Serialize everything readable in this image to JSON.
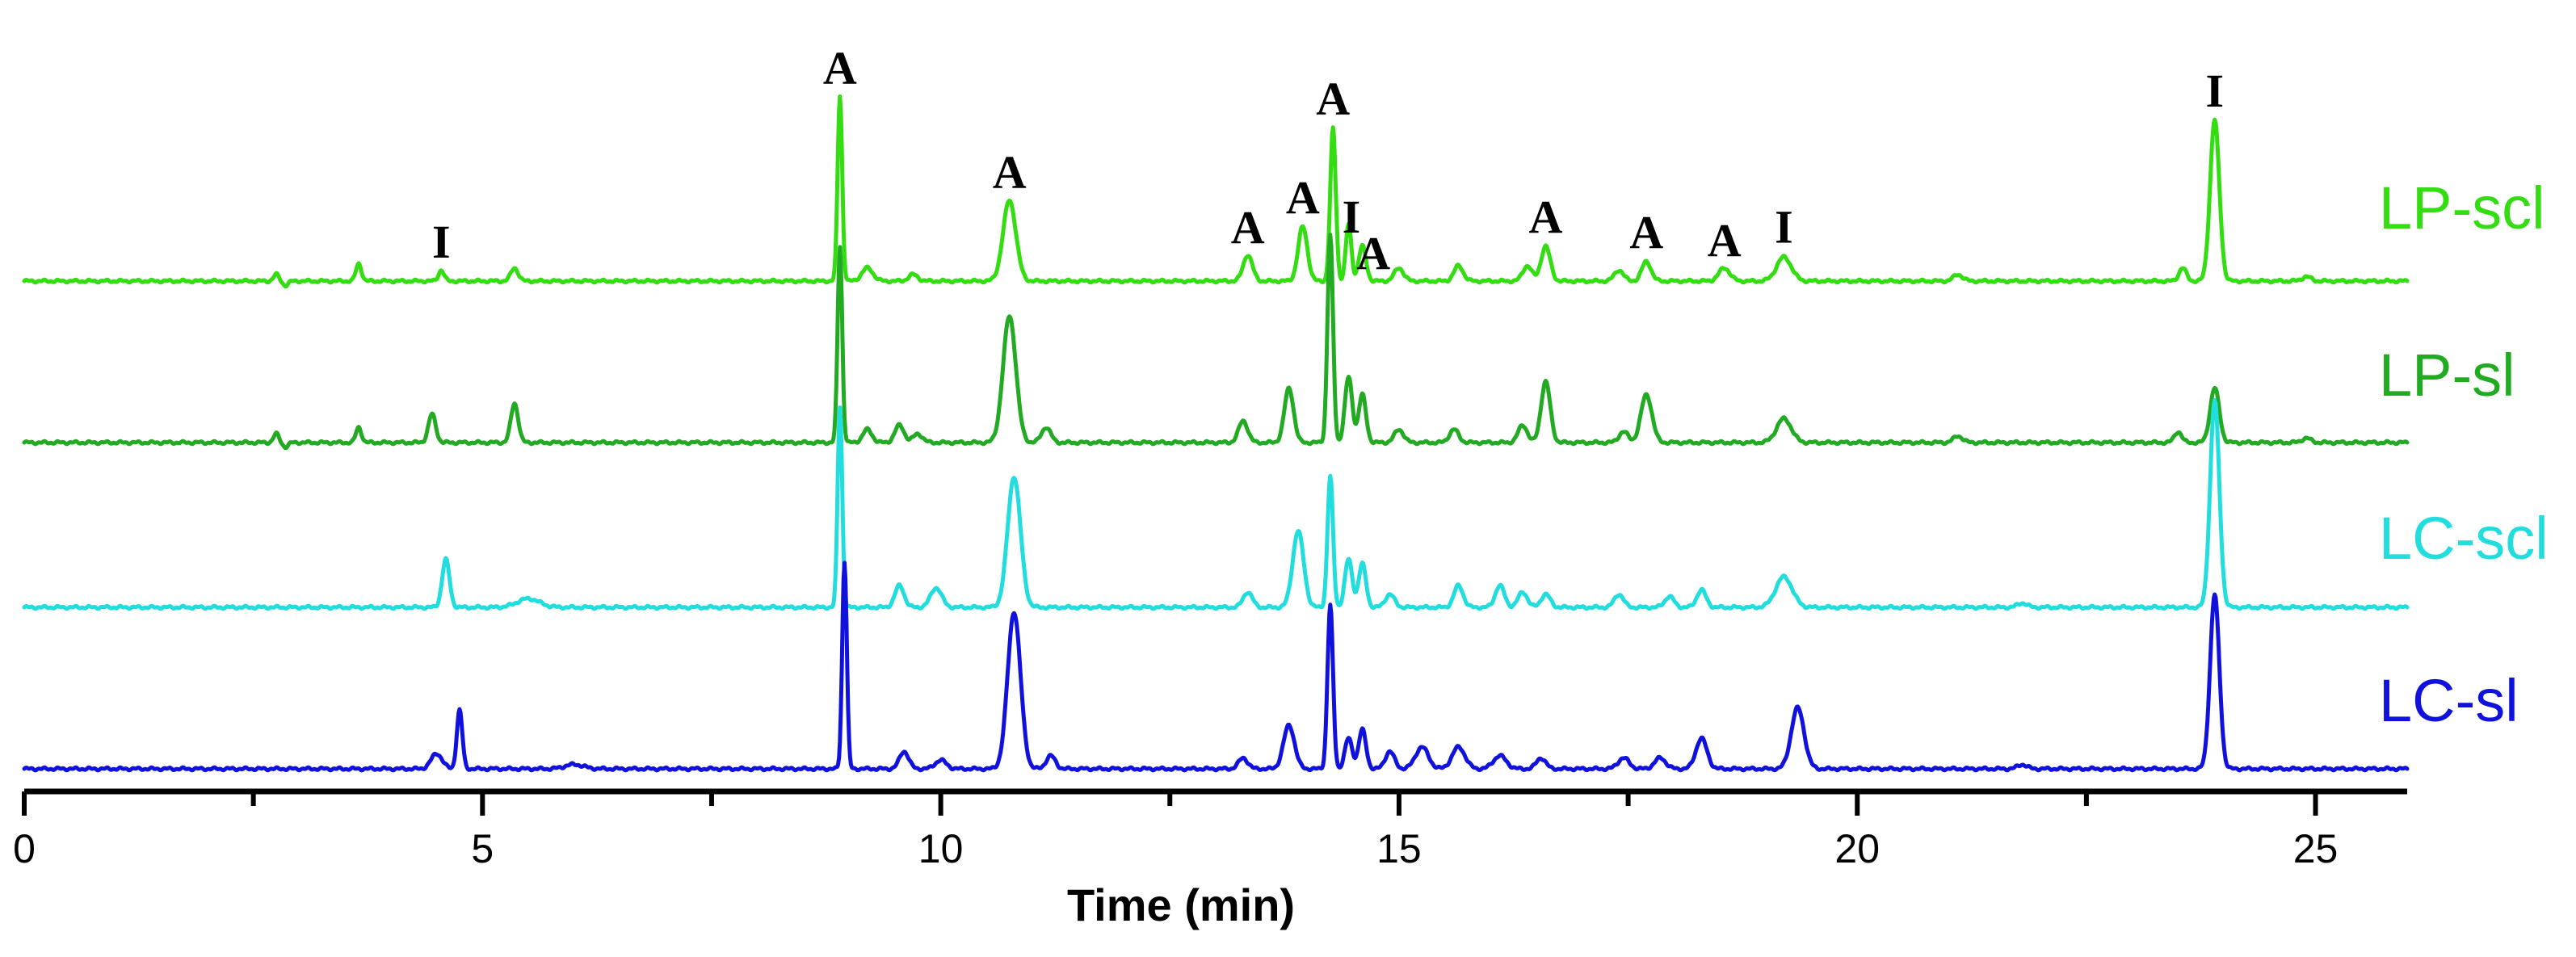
{
  "chart_data": {
    "type": "line",
    "xlabel": "Time (min)",
    "xlim": [
      0,
      26
    ],
    "xticks": [
      0,
      5,
      10,
      15,
      20,
      25
    ],
    "minor_tick_step": 2.5,
    "series": [
      {
        "name": "LP-scl",
        "color": "#33dd11",
        "peaks": [
          [
            2.75,
            0.03,
            0.03
          ],
          [
            2.85,
            -0.02,
            0.03
          ],
          [
            3.65,
            0.08,
            0.03
          ],
          [
            4.55,
            0.05,
            0.03
          ],
          [
            5.35,
            0.06,
            0.04
          ],
          [
            8.9,
            0.85,
            0.025
          ],
          [
            9.2,
            0.06,
            0.06
          ],
          [
            9.7,
            0.03,
            0.05
          ],
          [
            10.75,
            0.37,
            0.07
          ],
          [
            13.35,
            0.12,
            0.05
          ],
          [
            13.95,
            0.25,
            0.05
          ],
          [
            14.28,
            0.7,
            0.03
          ],
          [
            14.45,
            0.26,
            0.03
          ],
          [
            14.6,
            0.16,
            0.04
          ],
          [
            15.0,
            0.06,
            0.05
          ],
          [
            15.65,
            0.07,
            0.05
          ],
          [
            16.4,
            0.07,
            0.05
          ],
          [
            16.6,
            0.16,
            0.05
          ],
          [
            17.4,
            0.05,
            0.05
          ],
          [
            17.7,
            0.09,
            0.05
          ],
          [
            18.55,
            0.06,
            0.06
          ],
          [
            19.2,
            0.11,
            0.08
          ],
          [
            21.1,
            0.03,
            0.05
          ],
          [
            23.55,
            0.06,
            0.04
          ],
          [
            23.9,
            0.74,
            0.05
          ],
          [
            24.9,
            0.02,
            0.05
          ]
        ]
      },
      {
        "name": "LP-sl",
        "color": "#22aa22",
        "peaks": [
          [
            2.75,
            0.04,
            0.03
          ],
          [
            2.85,
            -0.02,
            0.03
          ],
          [
            3.65,
            0.07,
            0.03
          ],
          [
            4.45,
            0.13,
            0.04
          ],
          [
            5.35,
            0.18,
            0.04
          ],
          [
            8.9,
            0.9,
            0.025
          ],
          [
            9.2,
            0.06,
            0.05
          ],
          [
            9.55,
            0.08,
            0.05
          ],
          [
            9.75,
            0.04,
            0.05
          ],
          [
            10.75,
            0.58,
            0.07
          ],
          [
            11.15,
            0.07,
            0.05
          ],
          [
            13.3,
            0.1,
            0.05
          ],
          [
            13.8,
            0.25,
            0.05
          ],
          [
            14.25,
            0.95,
            0.03
          ],
          [
            14.45,
            0.3,
            0.04
          ],
          [
            14.6,
            0.22,
            0.04
          ],
          [
            15.0,
            0.06,
            0.05
          ],
          [
            15.6,
            0.06,
            0.05
          ],
          [
            16.35,
            0.08,
            0.05
          ],
          [
            16.6,
            0.28,
            0.05
          ],
          [
            17.45,
            0.05,
            0.05
          ],
          [
            17.7,
            0.22,
            0.06
          ],
          [
            19.2,
            0.11,
            0.08
          ],
          [
            21.1,
            0.03,
            0.05
          ],
          [
            23.5,
            0.05,
            0.04
          ],
          [
            23.9,
            0.25,
            0.05
          ],
          [
            24.9,
            0.02,
            0.05
          ]
        ]
      },
      {
        "name": "LC-scl",
        "color": "#22dddd",
        "peaks": [
          [
            4.6,
            0.22,
            0.04
          ],
          [
            5.5,
            0.04,
            0.12
          ],
          [
            8.9,
            0.92,
            0.025
          ],
          [
            9.55,
            0.1,
            0.05
          ],
          [
            9.95,
            0.09,
            0.06
          ],
          [
            10.8,
            0.6,
            0.07
          ],
          [
            13.35,
            0.07,
            0.05
          ],
          [
            13.9,
            0.35,
            0.06
          ],
          [
            14.25,
            0.6,
            0.03
          ],
          [
            14.45,
            0.22,
            0.04
          ],
          [
            14.6,
            0.2,
            0.04
          ],
          [
            14.9,
            0.06,
            0.05
          ],
          [
            15.65,
            0.1,
            0.05
          ],
          [
            16.1,
            0.1,
            0.05
          ],
          [
            16.35,
            0.07,
            0.05
          ],
          [
            16.6,
            0.06,
            0.05
          ],
          [
            17.4,
            0.06,
            0.05
          ],
          [
            17.95,
            0.05,
            0.05
          ],
          [
            18.3,
            0.08,
            0.05
          ],
          [
            19.2,
            0.14,
            0.09
          ],
          [
            21.8,
            0.02,
            0.05
          ],
          [
            23.9,
            0.95,
            0.05
          ]
        ]
      },
      {
        "name": "LC-sl",
        "color": "#1111dd",
        "peaks": [
          [
            4.5,
            0.07,
            0.06
          ],
          [
            4.75,
            0.27,
            0.03
          ],
          [
            6.0,
            0.02,
            0.1
          ],
          [
            8.95,
            0.95,
            0.025
          ],
          [
            9.6,
            0.08,
            0.05
          ],
          [
            10.0,
            0.04,
            0.06
          ],
          [
            10.8,
            0.72,
            0.07
          ],
          [
            11.2,
            0.06,
            0.05
          ],
          [
            13.3,
            0.05,
            0.05
          ],
          [
            13.8,
            0.2,
            0.06
          ],
          [
            14.25,
            0.75,
            0.03
          ],
          [
            14.45,
            0.14,
            0.04
          ],
          [
            14.6,
            0.18,
            0.04
          ],
          [
            14.9,
            0.08,
            0.05
          ],
          [
            15.25,
            0.1,
            0.07
          ],
          [
            15.65,
            0.1,
            0.07
          ],
          [
            16.1,
            0.06,
            0.07
          ],
          [
            16.55,
            0.05,
            0.05
          ],
          [
            17.45,
            0.05,
            0.06
          ],
          [
            17.85,
            0.05,
            0.06
          ],
          [
            18.3,
            0.14,
            0.06
          ],
          [
            19.35,
            0.28,
            0.07
          ],
          [
            21.8,
            0.02,
            0.05
          ],
          [
            23.9,
            0.8,
            0.05
          ]
        ]
      }
    ],
    "annotations": [
      {
        "series": "LP-scl",
        "x": 4.55,
        "text": "I"
      },
      {
        "series": "LP-scl",
        "x": 8.9,
        "text": "A"
      },
      {
        "series": "LP-scl",
        "x": 10.75,
        "text": "A"
      },
      {
        "series": "LP-scl",
        "x": 13.35,
        "text": "A"
      },
      {
        "series": "LP-scl",
        "x": 13.95,
        "text": "A"
      },
      {
        "series": "LP-scl",
        "x": 14.28,
        "text": "A"
      },
      {
        "series": "LP-scl",
        "x": 14.48,
        "text": "I"
      },
      {
        "series": "LP-scl",
        "x": 14.72,
        "text": "A"
      },
      {
        "series": "LP-scl",
        "x": 16.6,
        "text": "A"
      },
      {
        "series": "LP-scl",
        "x": 17.7,
        "text": "A"
      },
      {
        "series": "LP-scl",
        "x": 18.55,
        "text": "A"
      },
      {
        "series": "LP-scl",
        "x": 19.2,
        "text": "I"
      },
      {
        "series": "LP-scl",
        "x": 23.9,
        "text": "I"
      }
    ]
  }
}
